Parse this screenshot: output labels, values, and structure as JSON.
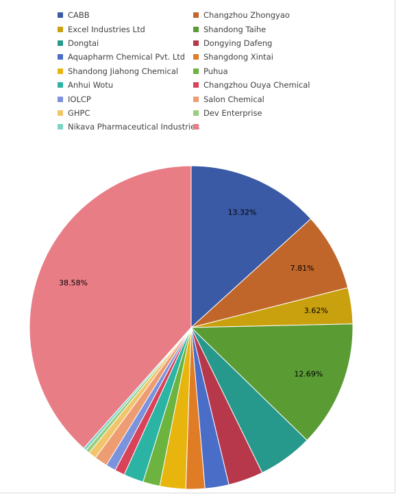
{
  "chart_data": {
    "type": "pie",
    "title": "",
    "legend_position": "top",
    "series": [
      {
        "name": "CABB",
        "value": 13.32,
        "color": "#3a5aa5",
        "label": "13.32%"
      },
      {
        "name": "Changzhou Zhongyao",
        "value": 7.81,
        "color": "#c0662a",
        "label": "7.81%"
      },
      {
        "name": "Excel Industries Ltd",
        "value": 3.62,
        "color": "#c9a10f",
        "label": "3.62%"
      },
      {
        "name": "Shandong Taihe",
        "value": 12.69,
        "color": "#5a9b34",
        "label": "12.69%"
      },
      {
        "name": "Dongtai",
        "value": 5.5,
        "color": "#27998c",
        "label": ""
      },
      {
        "name": "Dongying Dafeng",
        "value": 3.5,
        "color": "#b7384a",
        "label": ""
      },
      {
        "name": "Aquapharm Chemical Pvt. Ltd",
        "value": 2.4,
        "color": "#4a6dc7",
        "label": ""
      },
      {
        "name": "Shangdong Xintai",
        "value": 1.9,
        "color": "#e07b26",
        "label": ""
      },
      {
        "name": "Shandong Jiahong Chemical",
        "value": 2.6,
        "color": "#e8b40e",
        "label": ""
      },
      {
        "name": "Puhua",
        "value": 1.7,
        "color": "#6db33f",
        "label": ""
      },
      {
        "name": "Anhui Wotu",
        "value": 2.0,
        "color": "#2bb3a3",
        "label": ""
      },
      {
        "name": "Changzhou Ouya Chemical",
        "value": 1.0,
        "color": "#d9435a",
        "label": ""
      },
      {
        "name": "IOLCP",
        "value": 1.0,
        "color": "#7b93dc",
        "label": ""
      },
      {
        "name": "Salon Chemical",
        "value": 1.3,
        "color": "#ee9c72",
        "label": ""
      },
      {
        "name": "GHPC",
        "value": 0.8,
        "color": "#f2c56a",
        "label": ""
      },
      {
        "name": "Dev Enterprise",
        "value": 0.4,
        "color": "#98cf7e",
        "label": ""
      },
      {
        "name": "Nikava Pharmaceutical Industries",
        "value": 0.3,
        "color": "#7cd3c5",
        "label": ""
      },
      {
        "name": "",
        "value": 38.58,
        "color": "#e87d86",
        "label": "38.58%"
      }
    ]
  }
}
